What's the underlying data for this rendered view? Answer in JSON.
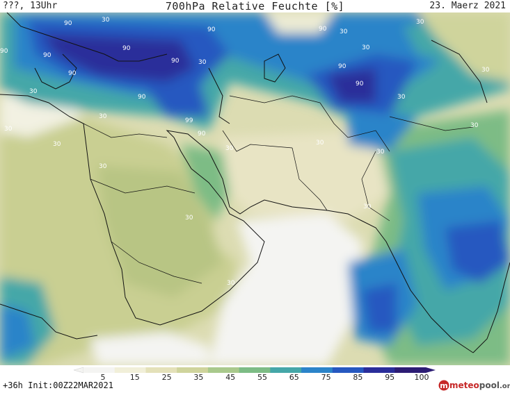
{
  "header": {
    "left": "???, 13Uhr",
    "title": "700hPa Relative Feuchte [%]",
    "date": "23. Maerz 2021"
  },
  "footer": {
    "run_info": "+36h Init:00Z22MAR2021",
    "logo_meteo": "meteo",
    "logo_pool": "pool",
    "logo_org": ".org"
  },
  "legend": {
    "ticks": [
      "5",
      "15",
      "25",
      "35",
      "45",
      "55",
      "65",
      "75",
      "85",
      "95",
      "100"
    ],
    "colors": [
      "#f4f4f2",
      "#f1efd9",
      "#e4e1b9",
      "#cfd49c",
      "#a9c98c",
      "#7dbc85",
      "#45a7a8",
      "#2b84c9",
      "#2658c0",
      "#2a2d9a",
      "#2c1c74"
    ]
  },
  "map": {
    "contour_labels": [
      "90",
      "90",
      "90",
      "90",
      "90",
      "90",
      "90",
      "90",
      "90",
      "90",
      "90",
      "99",
      "90",
      "30",
      "30",
      "30",
      "30",
      "30",
      "30",
      "30",
      "30",
      "30",
      "30",
      "30",
      "30",
      "30",
      "30",
      "30",
      "30",
      "30",
      "30",
      "30"
    ]
  }
}
